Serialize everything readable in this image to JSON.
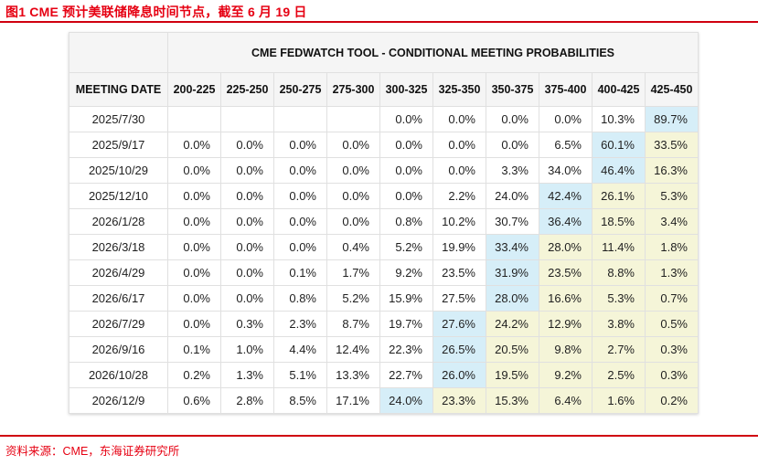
{
  "page": {
    "title": "图1  CME 预计美联储降息时间节点，截至 6 月 19 日",
    "source": "资料来源：CME，东海证券研究所"
  },
  "colors": {
    "accent_red": "#e60012",
    "rule_red": "#d0000f",
    "highlight_blue": "#d6eef8",
    "highlight_yellow": "#f5f5d8",
    "header_bg": "#f5f5f5",
    "cell_border": "#e0e0e0"
  },
  "chart_data": {
    "type": "table",
    "title": "CME FEDWATCH TOOL - CONDITIONAL MEETING PROBABILITIES",
    "row_header": "MEETING DATE",
    "columns": [
      "200-225",
      "225-250",
      "250-275",
      "275-300",
      "300-325",
      "325-350",
      "350-375",
      "375-400",
      "400-425",
      "425-450"
    ],
    "rows": [
      {
        "date": "2025/7/30",
        "values": [
          "",
          "",
          "",
          "",
          "0.0%",
          "0.0%",
          "0.0%",
          "0.0%",
          "10.3%",
          "89.7%"
        ],
        "marks": [
          "",
          "",
          "",
          "",
          "",
          "",
          "",
          "",
          "",
          "blue"
        ]
      },
      {
        "date": "2025/9/17",
        "values": [
          "0.0%",
          "0.0%",
          "0.0%",
          "0.0%",
          "0.0%",
          "0.0%",
          "0.0%",
          "6.5%",
          "60.1%",
          "33.5%"
        ],
        "marks": [
          "",
          "",
          "",
          "",
          "",
          "",
          "",
          "",
          "blue",
          "yellow"
        ]
      },
      {
        "date": "2025/10/29",
        "values": [
          "0.0%",
          "0.0%",
          "0.0%",
          "0.0%",
          "0.0%",
          "0.0%",
          "3.3%",
          "34.0%",
          "46.4%",
          "16.3%"
        ],
        "marks": [
          "",
          "",
          "",
          "",
          "",
          "",
          "",
          "",
          "blue",
          "yellow"
        ]
      },
      {
        "date": "2025/12/10",
        "values": [
          "0.0%",
          "0.0%",
          "0.0%",
          "0.0%",
          "0.0%",
          "2.2%",
          "24.0%",
          "42.4%",
          "26.1%",
          "5.3%"
        ],
        "marks": [
          "",
          "",
          "",
          "",
          "",
          "",
          "",
          "blue",
          "yellow",
          "yellow"
        ]
      },
      {
        "date": "2026/1/28",
        "values": [
          "0.0%",
          "0.0%",
          "0.0%",
          "0.0%",
          "0.8%",
          "10.2%",
          "30.7%",
          "36.4%",
          "18.5%",
          "3.4%"
        ],
        "marks": [
          "",
          "",
          "",
          "",
          "",
          "",
          "",
          "blue",
          "yellow",
          "yellow"
        ]
      },
      {
        "date": "2026/3/18",
        "values": [
          "0.0%",
          "0.0%",
          "0.0%",
          "0.4%",
          "5.2%",
          "19.9%",
          "33.4%",
          "28.0%",
          "11.4%",
          "1.8%"
        ],
        "marks": [
          "",
          "",
          "",
          "",
          "",
          "",
          "blue",
          "yellow",
          "yellow",
          "yellow"
        ]
      },
      {
        "date": "2026/4/29",
        "values": [
          "0.0%",
          "0.0%",
          "0.1%",
          "1.7%",
          "9.2%",
          "23.5%",
          "31.9%",
          "23.5%",
          "8.8%",
          "1.3%"
        ],
        "marks": [
          "",
          "",
          "",
          "",
          "",
          "",
          "blue",
          "yellow",
          "yellow",
          "yellow"
        ]
      },
      {
        "date": "2026/6/17",
        "values": [
          "0.0%",
          "0.0%",
          "0.8%",
          "5.2%",
          "15.9%",
          "27.5%",
          "28.0%",
          "16.6%",
          "5.3%",
          "0.7%"
        ],
        "marks": [
          "",
          "",
          "",
          "",
          "",
          "",
          "blue",
          "yellow",
          "yellow",
          "yellow"
        ]
      },
      {
        "date": "2026/7/29",
        "values": [
          "0.0%",
          "0.3%",
          "2.3%",
          "8.7%",
          "19.7%",
          "27.6%",
          "24.2%",
          "12.9%",
          "3.8%",
          "0.5%"
        ],
        "marks": [
          "",
          "",
          "",
          "",
          "",
          "blue",
          "yellow",
          "yellow",
          "yellow",
          "yellow"
        ]
      },
      {
        "date": "2026/9/16",
        "values": [
          "0.1%",
          "1.0%",
          "4.4%",
          "12.4%",
          "22.3%",
          "26.5%",
          "20.5%",
          "9.8%",
          "2.7%",
          "0.3%"
        ],
        "marks": [
          "",
          "",
          "",
          "",
          "",
          "blue",
          "yellow",
          "yellow",
          "yellow",
          "yellow"
        ]
      },
      {
        "date": "2026/10/28",
        "values": [
          "0.2%",
          "1.3%",
          "5.1%",
          "13.3%",
          "22.7%",
          "26.0%",
          "19.5%",
          "9.2%",
          "2.5%",
          "0.3%"
        ],
        "marks": [
          "",
          "",
          "",
          "",
          "",
          "blue",
          "yellow",
          "yellow",
          "yellow",
          "yellow"
        ]
      },
      {
        "date": "2026/12/9",
        "values": [
          "0.6%",
          "2.8%",
          "8.5%",
          "17.1%",
          "24.0%",
          "23.3%",
          "15.3%",
          "6.4%",
          "1.6%",
          "0.2%"
        ],
        "marks": [
          "",
          "",
          "",
          "",
          "blue",
          "yellow",
          "yellow",
          "yellow",
          "yellow",
          "yellow"
        ]
      }
    ]
  }
}
